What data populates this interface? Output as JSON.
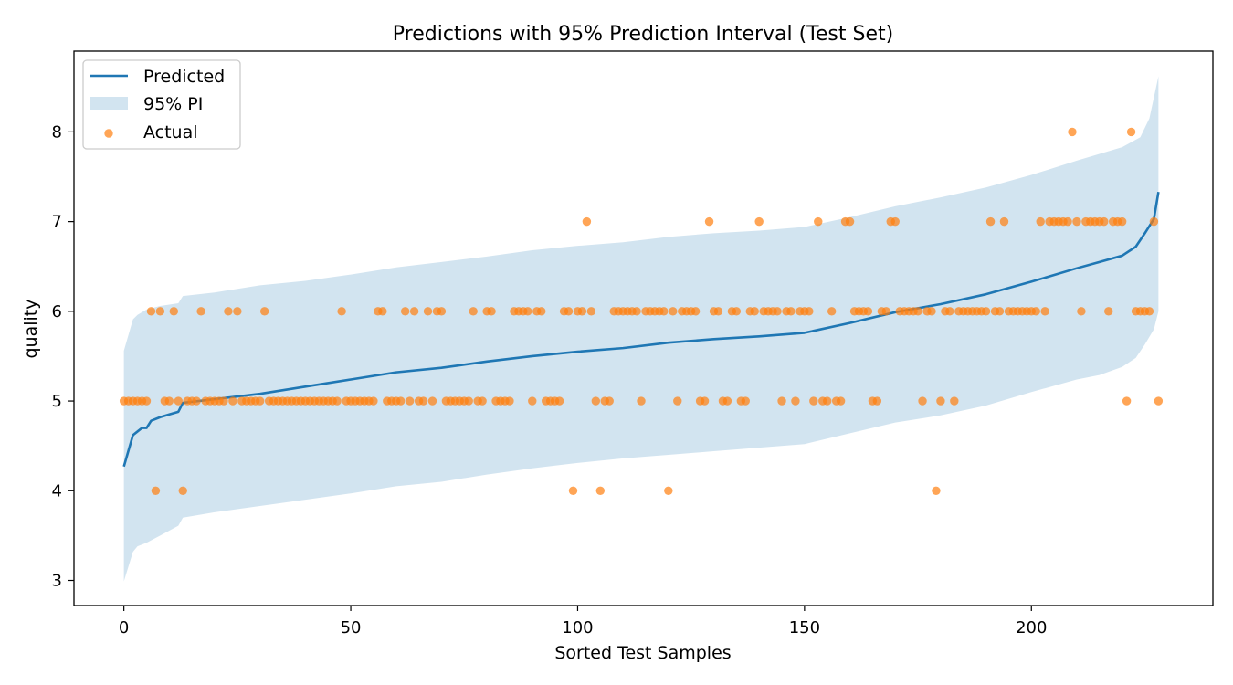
{
  "chart_data": {
    "type": "line",
    "title": "Predictions with 95% Prediction Interval (Test Set)",
    "xlabel": "Sorted Test Samples",
    "ylabel": "quality",
    "xlim": [
      -11,
      240
    ],
    "ylim": [
      2.72,
      8.9
    ],
    "xticks": [
      0,
      50,
      100,
      150,
      200
    ],
    "yticks": [
      3,
      4,
      5,
      6,
      7,
      8
    ],
    "grid": false,
    "legend_position": "top-left",
    "legend": [
      "Predicted",
      "95% PI",
      "Actual"
    ],
    "colors": {
      "predicted": "#1f77b4",
      "interval": "#1f77b4",
      "actual": "#ff7f0e"
    },
    "series": [
      {
        "name": "Predicted",
        "kind": "line",
        "points": [
          [
            0,
            4.27
          ],
          [
            2,
            4.62
          ],
          [
            3,
            4.66
          ],
          [
            4,
            4.7
          ],
          [
            5,
            4.7
          ],
          [
            6,
            4.78
          ],
          [
            8,
            4.82
          ],
          [
            10,
            4.85
          ],
          [
            12,
            4.88
          ],
          [
            13,
            4.98
          ],
          [
            20,
            5.02
          ],
          [
            30,
            5.08
          ],
          [
            40,
            5.16
          ],
          [
            50,
            5.24
          ],
          [
            60,
            5.32
          ],
          [
            70,
            5.37
          ],
          [
            80,
            5.44
          ],
          [
            90,
            5.5
          ],
          [
            100,
            5.55
          ],
          [
            110,
            5.59
          ],
          [
            120,
            5.65
          ],
          [
            130,
            5.69
          ],
          [
            140,
            5.72
          ],
          [
            150,
            5.76
          ],
          [
            160,
            5.87
          ],
          [
            170,
            5.99
          ],
          [
            180,
            6.08
          ],
          [
            190,
            6.19
          ],
          [
            200,
            6.33
          ],
          [
            210,
            6.48
          ],
          [
            215,
            6.55
          ],
          [
            220,
            6.62
          ],
          [
            223,
            6.72
          ],
          [
            225,
            6.87
          ],
          [
            227,
            7.03
          ],
          [
            228,
            7.33
          ]
        ]
      },
      {
        "name": "95% PI",
        "kind": "band",
        "upper": [
          [
            0,
            5.56
          ],
          [
            2,
            5.91
          ],
          [
            3,
            5.96
          ],
          [
            5,
            6.02
          ],
          [
            8,
            6.06
          ],
          [
            12,
            6.09
          ],
          [
            13,
            6.17
          ],
          [
            20,
            6.21
          ],
          [
            30,
            6.29
          ],
          [
            40,
            6.34
          ],
          [
            50,
            6.41
          ],
          [
            60,
            6.49
          ],
          [
            70,
            6.55
          ],
          [
            80,
            6.61
          ],
          [
            90,
            6.68
          ],
          [
            100,
            6.73
          ],
          [
            110,
            6.77
          ],
          [
            120,
            6.83
          ],
          [
            130,
            6.87
          ],
          [
            140,
            6.9
          ],
          [
            150,
            6.94
          ],
          [
            160,
            7.05
          ],
          [
            170,
            7.17
          ],
          [
            180,
            7.27
          ],
          [
            190,
            7.38
          ],
          [
            200,
            7.52
          ],
          [
            210,
            7.68
          ],
          [
            220,
            7.83
          ],
          [
            224,
            7.94
          ],
          [
            226,
            8.15
          ],
          [
            228,
            8.62
          ]
        ],
        "lower": [
          [
            0,
            2.99
          ],
          [
            2,
            3.32
          ],
          [
            3,
            3.38
          ],
          [
            5,
            3.42
          ],
          [
            8,
            3.5
          ],
          [
            12,
            3.61
          ],
          [
            13,
            3.7
          ],
          [
            20,
            3.76
          ],
          [
            30,
            3.83
          ],
          [
            40,
            3.9
          ],
          [
            50,
            3.97
          ],
          [
            60,
            4.05
          ],
          [
            70,
            4.1
          ],
          [
            80,
            4.18
          ],
          [
            90,
            4.25
          ],
          [
            100,
            4.31
          ],
          [
            110,
            4.36
          ],
          [
            120,
            4.4
          ],
          [
            130,
            4.44
          ],
          [
            140,
            4.48
          ],
          [
            150,
            4.52
          ],
          [
            160,
            4.64
          ],
          [
            170,
            4.76
          ],
          [
            180,
            4.84
          ],
          [
            190,
            4.95
          ],
          [
            200,
            5.1
          ],
          [
            210,
            5.24
          ],
          [
            215,
            5.29
          ],
          [
            220,
            5.38
          ],
          [
            223,
            5.48
          ],
          [
            225,
            5.63
          ],
          [
            227,
            5.8
          ],
          [
            228,
            6.0
          ]
        ]
      },
      {
        "name": "Actual",
        "kind": "scatter",
        "points": [
          [
            0,
            5
          ],
          [
            1,
            5
          ],
          [
            2,
            5
          ],
          [
            3,
            5
          ],
          [
            4,
            5
          ],
          [
            5,
            5
          ],
          [
            6,
            6
          ],
          [
            7,
            4
          ],
          [
            8,
            6
          ],
          [
            9,
            5
          ],
          [
            10,
            5
          ],
          [
            11,
            6
          ],
          [
            12,
            5
          ],
          [
            13,
            4
          ],
          [
            14,
            5
          ],
          [
            15,
            5
          ],
          [
            16,
            5
          ],
          [
            17,
            6
          ],
          [
            18,
            5
          ],
          [
            19,
            5
          ],
          [
            20,
            5
          ],
          [
            21,
            5
          ],
          [
            22,
            5
          ],
          [
            23,
            6
          ],
          [
            24,
            5
          ],
          [
            25,
            6
          ],
          [
            26,
            5
          ],
          [
            27,
            5
          ],
          [
            28,
            5
          ],
          [
            29,
            5
          ],
          [
            30,
            5
          ],
          [
            31,
            6
          ],
          [
            32,
            5
          ],
          [
            33,
            5
          ],
          [
            34,
            5
          ],
          [
            35,
            5
          ],
          [
            36,
            5
          ],
          [
            37,
            5
          ],
          [
            38,
            5
          ],
          [
            39,
            5
          ],
          [
            40,
            5
          ],
          [
            41,
            5
          ],
          [
            42,
            5
          ],
          [
            43,
            5
          ],
          [
            44,
            5
          ],
          [
            45,
            5
          ],
          [
            46,
            5
          ],
          [
            47,
            5
          ],
          [
            48,
            6
          ],
          [
            49,
            5
          ],
          [
            50,
            5
          ],
          [
            51,
            5
          ],
          [
            52,
            5
          ],
          [
            53,
            5
          ],
          [
            54,
            5
          ],
          [
            55,
            5
          ],
          [
            56,
            6
          ],
          [
            57,
            6
          ],
          [
            58,
            5
          ],
          [
            59,
            5
          ],
          [
            60,
            5
          ],
          [
            61,
            5
          ],
          [
            62,
            6
          ],
          [
            63,
            5
          ],
          [
            64,
            6
          ],
          [
            65,
            5
          ],
          [
            66,
            5
          ],
          [
            67,
            6
          ],
          [
            68,
            5
          ],
          [
            69,
            6
          ],
          [
            70,
            6
          ],
          [
            71,
            5
          ],
          [
            72,
            5
          ],
          [
            73,
            5
          ],
          [
            74,
            5
          ],
          [
            75,
            5
          ],
          [
            76,
            5
          ],
          [
            77,
            6
          ],
          [
            78,
            5
          ],
          [
            79,
            5
          ],
          [
            80,
            6
          ],
          [
            81,
            6
          ],
          [
            82,
            5
          ],
          [
            83,
            5
          ],
          [
            84,
            5
          ],
          [
            85,
            5
          ],
          [
            86,
            6
          ],
          [
            87,
            6
          ],
          [
            88,
            6
          ],
          [
            89,
            6
          ],
          [
            90,
            5
          ],
          [
            91,
            6
          ],
          [
            92,
            6
          ],
          [
            93,
            5
          ],
          [
            94,
            5
          ],
          [
            95,
            5
          ],
          [
            96,
            5
          ],
          [
            97,
            6
          ],
          [
            98,
            6
          ],
          [
            99,
            4
          ],
          [
            100,
            6
          ],
          [
            101,
            6
          ],
          [
            102,
            7
          ],
          [
            103,
            6
          ],
          [
            104,
            5
          ],
          [
            105,
            4
          ],
          [
            106,
            5
          ],
          [
            107,
            5
          ],
          [
            108,
            6
          ],
          [
            109,
            6
          ],
          [
            110,
            6
          ],
          [
            111,
            6
          ],
          [
            112,
            6
          ],
          [
            113,
            6
          ],
          [
            114,
            5
          ],
          [
            115,
            6
          ],
          [
            116,
            6
          ],
          [
            117,
            6
          ],
          [
            118,
            6
          ],
          [
            119,
            6
          ],
          [
            120,
            4
          ],
          [
            121,
            6
          ],
          [
            122,
            5
          ],
          [
            123,
            6
          ],
          [
            124,
            6
          ],
          [
            125,
            6
          ],
          [
            126,
            6
          ],
          [
            127,
            5
          ],
          [
            128,
            5
          ],
          [
            129,
            7
          ],
          [
            130,
            6
          ],
          [
            131,
            6
          ],
          [
            132,
            5
          ],
          [
            133,
            5
          ],
          [
            134,
            6
          ],
          [
            135,
            6
          ],
          [
            136,
            5
          ],
          [
            137,
            5
          ],
          [
            138,
            6
          ],
          [
            139,
            6
          ],
          [
            140,
            7
          ],
          [
            141,
            6
          ],
          [
            142,
            6
          ],
          [
            143,
            6
          ],
          [
            144,
            6
          ],
          [
            145,
            5
          ],
          [
            146,
            6
          ],
          [
            147,
            6
          ],
          [
            148,
            5
          ],
          [
            149,
            6
          ],
          [
            150,
            6
          ],
          [
            151,
            6
          ],
          [
            152,
            5
          ],
          [
            153,
            7
          ],
          [
            154,
            5
          ],
          [
            155,
            5
          ],
          [
            156,
            6
          ],
          [
            157,
            5
          ],
          [
            158,
            5
          ],
          [
            159,
            7
          ],
          [
            160,
            7
          ],
          [
            161,
            6
          ],
          [
            162,
            6
          ],
          [
            163,
            6
          ],
          [
            164,
            6
          ],
          [
            165,
            5
          ],
          [
            166,
            5
          ],
          [
            167,
            6
          ],
          [
            168,
            6
          ],
          [
            169,
            7
          ],
          [
            170,
            7
          ],
          [
            171,
            6
          ],
          [
            172,
            6
          ],
          [
            173,
            6
          ],
          [
            174,
            6
          ],
          [
            175,
            6
          ],
          [
            176,
            5
          ],
          [
            177,
            6
          ],
          [
            178,
            6
          ],
          [
            179,
            4
          ],
          [
            180,
            5
          ],
          [
            181,
            6
          ],
          [
            182,
            6
          ],
          [
            183,
            5
          ],
          [
            184,
            6
          ],
          [
            185,
            6
          ],
          [
            186,
            6
          ],
          [
            187,
            6
          ],
          [
            188,
            6
          ],
          [
            189,
            6
          ],
          [
            190,
            6
          ],
          [
            191,
            7
          ],
          [
            192,
            6
          ],
          [
            193,
            6
          ],
          [
            194,
            7
          ],
          [
            195,
            6
          ],
          [
            196,
            6
          ],
          [
            197,
            6
          ],
          [
            198,
            6
          ],
          [
            199,
            6
          ],
          [
            200,
            6
          ],
          [
            201,
            6
          ],
          [
            202,
            7
          ],
          [
            203,
            6
          ],
          [
            204,
            7
          ],
          [
            205,
            7
          ],
          [
            206,
            7
          ],
          [
            207,
            7
          ],
          [
            208,
            7
          ],
          [
            209,
            8
          ],
          [
            210,
            7
          ],
          [
            211,
            6
          ],
          [
            212,
            7
          ],
          [
            213,
            7
          ],
          [
            214,
            7
          ],
          [
            215,
            7
          ],
          [
            216,
            7
          ],
          [
            217,
            6
          ],
          [
            218,
            7
          ],
          [
            219,
            7
          ],
          [
            220,
            7
          ],
          [
            221,
            5
          ],
          [
            222,
            8
          ],
          [
            223,
            6
          ],
          [
            224,
            6
          ],
          [
            225,
            6
          ],
          [
            226,
            6
          ],
          [
            227,
            7
          ],
          [
            228,
            5
          ]
        ]
      }
    ]
  }
}
